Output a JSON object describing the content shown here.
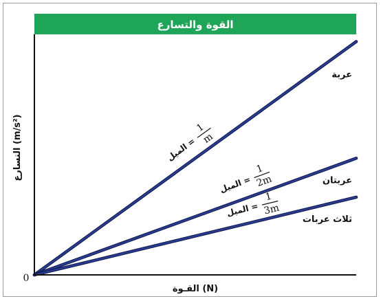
{
  "chart_data": {
    "type": "line",
    "title": "القوة والتسارع",
    "xlabel": "القـوة (N)",
    "ylabel": "التسارع (m/s²)",
    "origin_label": "0",
    "colors": {
      "title_bar": "#1fa558",
      "title_text": "#ffffff",
      "line": "#2c3c8c",
      "line_edge": "#0c154e",
      "axis": "#111111"
    },
    "xlim": [
      0,
      10
    ],
    "ylim": [
      0,
      10
    ],
    "series": [
      {
        "name": "عربة",
        "slope_label": {
          "prefix": "الميل =",
          "numerator": "1",
          "denominator": "m"
        },
        "x": [
          0,
          10
        ],
        "y": [
          0,
          9.7
        ]
      },
      {
        "name": "عربتان",
        "slope_label": {
          "prefix": "الميل =",
          "numerator": "1",
          "denominator": "2m"
        },
        "x": [
          0,
          10
        ],
        "y": [
          0,
          4.85
        ]
      },
      {
        "name": "ثلاث عربات",
        "slope_label": {
          "prefix": "الميل =",
          "numerator": "1",
          "denominator": "3m"
        },
        "x": [
          0,
          10
        ],
        "y": [
          0,
          3.23
        ]
      }
    ]
  }
}
